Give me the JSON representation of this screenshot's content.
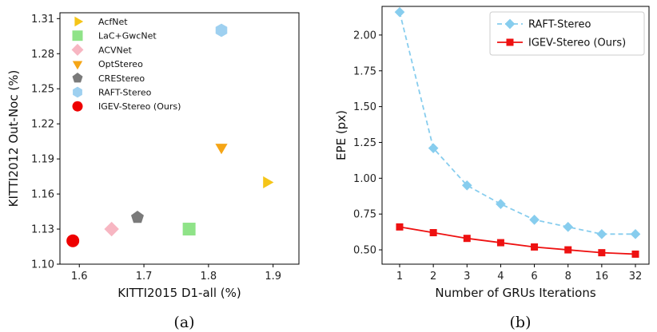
{
  "chart_data": [
    {
      "type": "scatter",
      "caption": "(a)",
      "xlabel": "KITTI2015 D1-all (%)",
      "ylabel": "KITTI2012 Out-Noc (%)",
      "xlim": [
        1.57,
        1.94
      ],
      "ylim": [
        1.1,
        1.315
      ],
      "xticks": [
        1.6,
        1.7,
        1.8,
        1.9
      ],
      "xtick_labels": [
        "1.6",
        "1.7",
        "1.8",
        "1.9"
      ],
      "yticks": [
        1.1,
        1.13,
        1.16,
        1.19,
        1.22,
        1.25,
        1.28,
        1.31
      ],
      "ytick_labels": [
        "1.10",
        "1.13",
        "1.16",
        "1.19",
        "1.22",
        "1.25",
        "1.28",
        "1.31"
      ],
      "legend_position": "top-left",
      "series": [
        {
          "name": "AcfNet",
          "marker": "triangle-right",
          "color": "#f5c518",
          "x": 1.89,
          "y": 1.17
        },
        {
          "name": "LaC+GwcNet",
          "marker": "square",
          "color": "#8fe388",
          "x": 1.77,
          "y": 1.13
        },
        {
          "name": "ACVNet",
          "marker": "diamond",
          "color": "#f7b6c2",
          "x": 1.65,
          "y": 1.13
        },
        {
          "name": "OptStereo",
          "marker": "triangle-down",
          "color": "#f5a516",
          "x": 1.82,
          "y": 1.2
        },
        {
          "name": "CREStereo",
          "marker": "pentagon",
          "color": "#7a7a7a",
          "x": 1.69,
          "y": 1.14
        },
        {
          "name": "RAFT-Stereo",
          "marker": "hexagon",
          "color": "#9ed0f0",
          "x": 1.82,
          "y": 1.3
        },
        {
          "name": "IGEV-Stereo (Ours)",
          "marker": "circle",
          "color": "#ee0000",
          "x": 1.59,
          "y": 1.12
        }
      ]
    },
    {
      "type": "line",
      "caption": "(b)",
      "xlabel": "Number of GRUs Iterations",
      "ylabel": "EPE (px)",
      "categories": [
        "1",
        "2",
        "3",
        "4",
        "6",
        "8",
        "16",
        "32"
      ],
      "ylim": [
        0.4,
        2.2
      ],
      "yticks": [
        0.5,
        0.75,
        1.0,
        1.25,
        1.5,
        1.75,
        2.0
      ],
      "ytick_labels": [
        "0.50",
        "0.75",
        "1.00",
        "1.25",
        "1.50",
        "1.75",
        "2.00"
      ],
      "legend_position": "top-right",
      "series": [
        {
          "name": "RAFT-Stereo",
          "marker": "diamond",
          "line_style": "dashed",
          "color": "#87cdee",
          "values": [
            2.16,
            1.21,
            0.95,
            0.82,
            0.71,
            0.66,
            0.61,
            0.61
          ]
        },
        {
          "name": "IGEV-Stereo (Ours)",
          "marker": "square",
          "line_style": "solid",
          "color": "#ee1111",
          "values": [
            0.66,
            0.62,
            0.58,
            0.55,
            0.52,
            0.5,
            0.48,
            0.47
          ]
        }
      ]
    }
  ]
}
